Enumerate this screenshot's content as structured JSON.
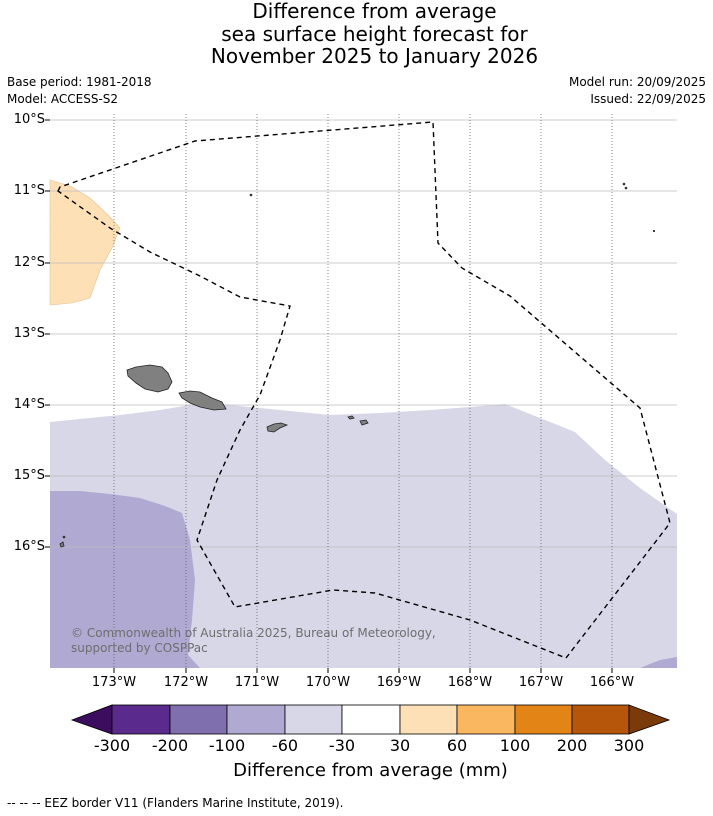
{
  "title": {
    "line1": "Difference from average",
    "line2": "sea surface height forecast for",
    "line3": "November 2025 to January 2026"
  },
  "meta": {
    "base_period": "Base period: 1981-2018",
    "model": "Model: ACCESS-S2",
    "model_run": "Model run: 20/09/2025",
    "issued": "Issued: 22/09/2025"
  },
  "map": {
    "latitude_labels": [
      "10°S",
      "11°S",
      "12°S",
      "13°S",
      "14°S",
      "15°S",
      "16°S"
    ],
    "longitude_labels": [
      "173°W",
      "172°W",
      "171°W",
      "170°W",
      "169°W",
      "168°W",
      "167°W",
      "166°W"
    ],
    "copyright": "© Commonwealth of Australia 2025, Bureau of Meteorology, supported by COSPPac",
    "colors": {
      "land": "#808080",
      "border": "#000000",
      "class_neg300_neg200": "#5a2a8c",
      "class_neg200_neg100": "#7f6fae",
      "class_neg100_neg60": "#b0a9d1",
      "class_neg60_neg30": "#d7d7e8",
      "class_neg30_30": "#ffffff",
      "class_30_60": "#fde0b5",
      "class_60_100": "#fbb760",
      "class_100_200": "#e28516",
      "class_200_300": "#b5560a"
    }
  },
  "colorbar": {
    "ticks": [
      "-300",
      "-200",
      "-100",
      "-60",
      "-30",
      "30",
      "60",
      "100",
      "200",
      "300"
    ],
    "label": "Difference from average (mm)",
    "colors": [
      "#3c0d5e",
      "#5a2a8c",
      "#7f6fae",
      "#b0a9d1",
      "#d7d7e8",
      "#ffffff",
      "#fde0b5",
      "#fbb760",
      "#e28516",
      "#b5560a",
      "#7a3a0a"
    ]
  },
  "footnote": "--  --  -- EEZ border V11 (Flanders Marine Institute, 2019)."
}
